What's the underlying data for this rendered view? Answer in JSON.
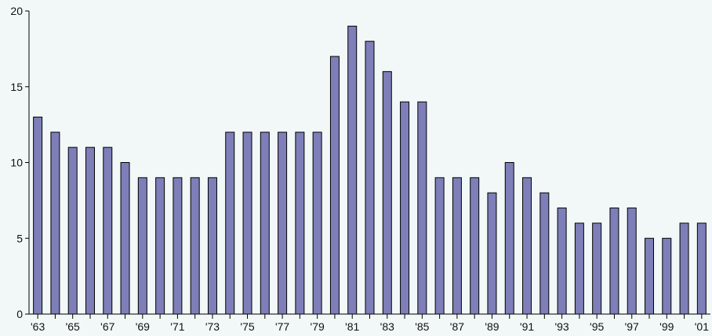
{
  "chart_data": {
    "type": "bar",
    "title": "",
    "xlabel": "",
    "ylabel": "",
    "ylim": [
      0,
      20
    ],
    "y_ticks": [
      0,
      5,
      10,
      15,
      20
    ],
    "grid": false,
    "bar_color": "#7e7eb8",
    "background": "#f2f8f8",
    "categories": [
      "'63",
      "'64",
      "'65",
      "'66",
      "'67",
      "'68",
      "'69",
      "'70",
      "'71",
      "'72",
      "'73",
      "'74",
      "'75",
      "'76",
      "'77",
      "'78",
      "'79",
      "'80",
      "'81",
      "'82",
      "'83",
      "'84",
      "'85",
      "'86",
      "'87",
      "'88",
      "'89",
      "'90",
      "'91",
      "'92",
      "'93",
      "'94",
      "'95",
      "'96",
      "'97",
      "'98",
      "'99",
      "'00",
      "'01"
    ],
    "x_tick_labels_shown": [
      "'63",
      "'65",
      "'67",
      "'69",
      "'71",
      "'73",
      "'75",
      "'77",
      "'79",
      "'81",
      "'83",
      "'85",
      "'87",
      "'89",
      "'91",
      "'93",
      "'95",
      "'97",
      "'99",
      "'01"
    ],
    "values": [
      13,
      12,
      11,
      11,
      11,
      10,
      9,
      9,
      9,
      9,
      9,
      12,
      12,
      12,
      12,
      12,
      12,
      17,
      19,
      18,
      16,
      14,
      14,
      9,
      9,
      9,
      8,
      10,
      9,
      8,
      7,
      6,
      6,
      7,
      7,
      5,
      5,
      6,
      6
    ]
  }
}
